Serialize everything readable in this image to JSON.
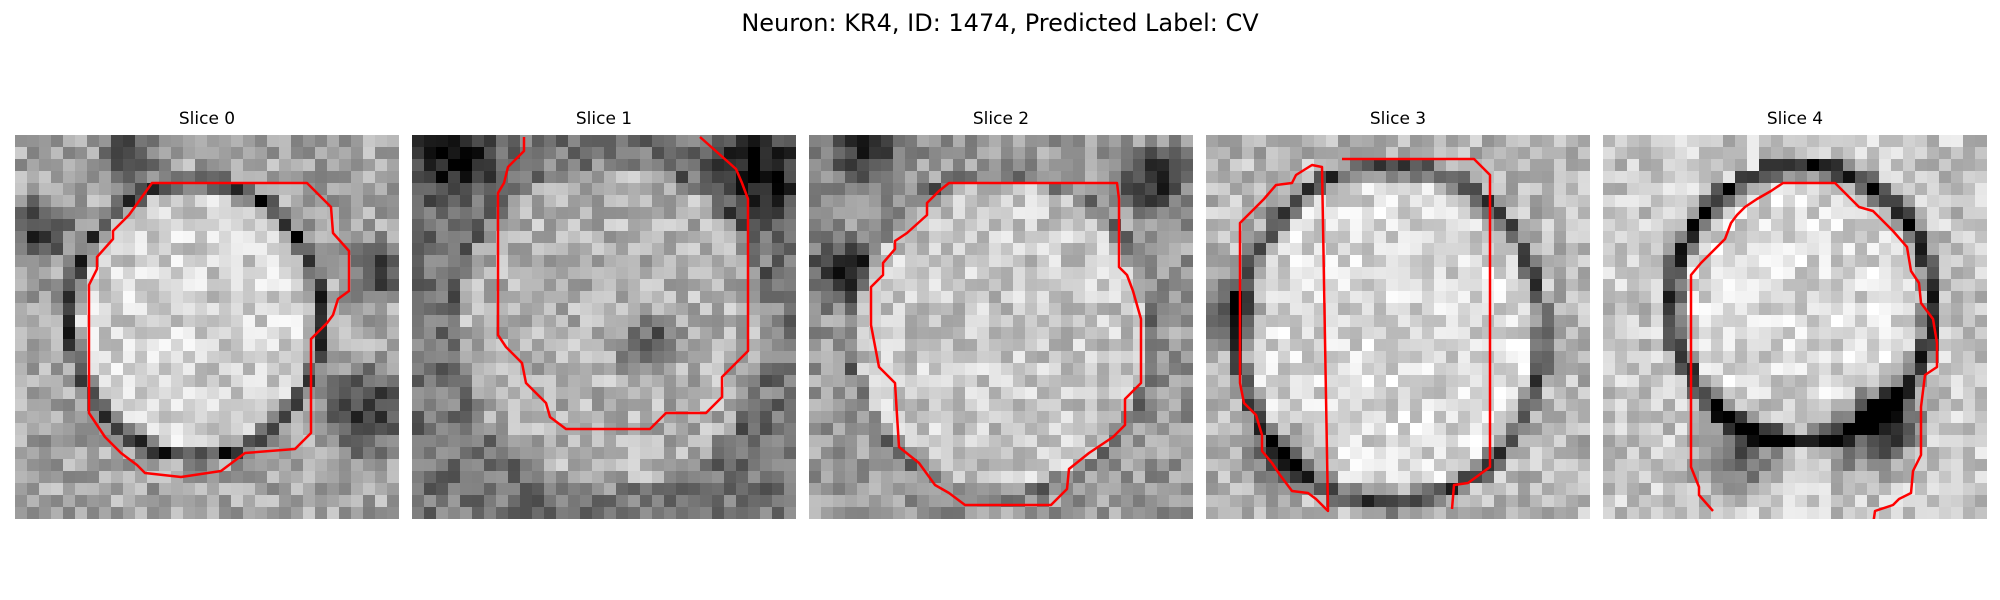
{
  "figure": {
    "title": "Neuron: KR4, ID: 1474, Predicted Label: CV"
  },
  "colors": {
    "contour": "#ff0000",
    "background": "#ffffff"
  },
  "panels": [
    {
      "title": "Slice 0"
    },
    {
      "title": "Slice 1"
    },
    {
      "title": "Slice 2"
    },
    {
      "title": "Slice 3"
    },
    {
      "title": "Slice 4"
    }
  ]
}
